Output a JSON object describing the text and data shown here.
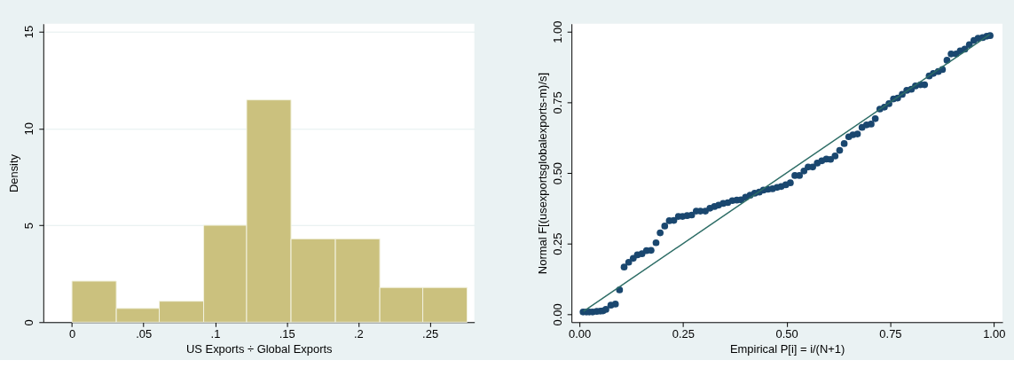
{
  "chart_data": [
    {
      "type": "histogram",
      "xlabel": "US Exports  ÷ Global Exports",
      "ylabel": "Density",
      "bins": [
        0,
        0.031,
        0.061,
        0.092,
        0.122,
        0.153,
        0.184,
        0.215,
        0.245,
        0.276
      ],
      "values": [
        2.12,
        0.71,
        1.08,
        5.0,
        11.47,
        4.3,
        4.3,
        1.79,
        1.79
      ],
      "color": "#cbc17e",
      "xlim": [
        -0.02,
        0.281
      ],
      "xticks": [
        0,
        {
          "value": 0.05,
          "label": ".05"
        },
        {
          "value": 0.1,
          "label": ".1"
        },
        {
          "value": 0.15,
          "label": ".15"
        },
        {
          "value": 0.2,
          "label": ".2"
        },
        {
          "value": 0.25,
          "label": ".25"
        }
      ],
      "ylim": [
        0,
        15.4
      ],
      "yticks": [
        0,
        5,
        10,
        15
      ],
      "grid": "y"
    },
    {
      "type": "scatter",
      "xlabel": "Empirical P[i] = i/(N+1)",
      "ylabel": "Normal F[(usexportsglobalexports-m)/s]",
      "xlim": [
        -0.019,
        1.021
      ],
      "ylim": [
        -0.028,
        1.028
      ],
      "xticks": [
        {
          "value": 0,
          "label": "0.00"
        },
        0.25,
        {
          "value": 0.5,
          "label": "0.50"
        },
        0.75,
        {
          "value": 1,
          "label": "1.00"
        }
      ],
      "yticks": [
        {
          "value": 0,
          "label": "0.00"
        },
        0.25,
        {
          "value": 0.5,
          "label": "0.50"
        },
        0.75,
        {
          "value": 1,
          "label": "1.00"
        }
      ],
      "grid": false,
      "series": [
        {
          "type": "scatter",
          "marker": "circle",
          "color": "#1a476f",
          "x": [
            0.009,
            0.017,
            0.024,
            0.032,
            0.042,
            0.051,
            0.057,
            0.064,
            0.076,
            0.087,
            0.097,
            0.108,
            0.119,
            0.13,
            0.14,
            0.151,
            0.162,
            0.173,
            0.185,
            0.195,
            0.206,
            0.217,
            0.228,
            0.239,
            0.249,
            0.26,
            0.271,
            0.282,
            0.292,
            0.304,
            0.315,
            0.326,
            0.336,
            0.347,
            0.358,
            0.369,
            0.38,
            0.39,
            0.401,
            0.412,
            0.423,
            0.434,
            0.444,
            0.455,
            0.466,
            0.477,
            0.487,
            0.498,
            0.509,
            0.52,
            0.531,
            0.542,
            0.552,
            0.563,
            0.574,
            0.585,
            0.596,
            0.606,
            0.617,
            0.628,
            0.639,
            0.65,
            0.66,
            0.671,
            0.682,
            0.693,
            0.704,
            0.714,
            0.725,
            0.736,
            0.747,
            0.758,
            0.768,
            0.779,
            0.79,
            0.801,
            0.811,
            0.823,
            0.833,
            0.844,
            0.854,
            0.866,
            0.876,
            0.887,
            0.897,
            0.909,
            0.919,
            0.93,
            0.941,
            0.952,
            0.962,
            0.973,
            0.983,
            0.991
          ],
          "values": [
            0.008,
            0.008,
            0.008,
            0.008,
            0.01,
            0.011,
            0.012,
            0.017,
            0.032,
            0.036,
            0.086,
            0.167,
            0.184,
            0.198,
            0.21,
            0.214,
            0.225,
            0.226,
            0.253,
            0.288,
            0.312,
            0.331,
            0.332,
            0.346,
            0.346,
            0.349,
            0.351,
            0.365,
            0.365,
            0.365,
            0.375,
            0.381,
            0.386,
            0.392,
            0.395,
            0.402,
            0.404,
            0.405,
            0.414,
            0.421,
            0.428,
            0.432,
            0.439,
            0.442,
            0.444,
            0.449,
            0.452,
            0.458,
            0.465,
            0.491,
            0.491,
            0.507,
            0.521,
            0.521,
            0.535,
            0.543,
            0.549,
            0.548,
            0.56,
            0.58,
            0.604,
            0.628,
            0.635,
            0.638,
            0.661,
            0.67,
            0.673,
            0.692,
            0.726,
            0.733,
            0.745,
            0.762,
            0.765,
            0.778,
            0.792,
            0.796,
            0.808,
            0.812,
            0.812,
            0.843,
            0.852,
            0.859,
            0.866,
            0.899,
            0.921,
            0.921,
            0.932,
            0.938,
            0.954,
            0.969,
            0.977,
            0.979,
            0.984,
            0.986
          ]
        },
        {
          "type": "line",
          "marker": "none",
          "color": "#2d6d66",
          "x": [
            0.01,
            0.99
          ],
          "values": [
            0.01,
            0.99
          ]
        }
      ]
    }
  ]
}
